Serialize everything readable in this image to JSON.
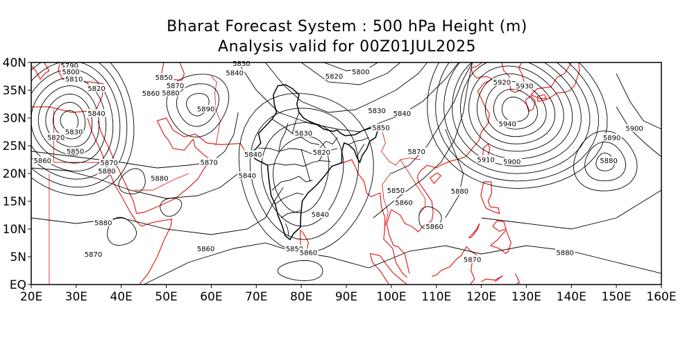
{
  "title": {
    "line1": "Bharat Forecast System : 500 hPa Height (m)",
    "line2": "Analysis valid for 00Z01JUL2025"
  },
  "axes": {
    "lon_ticks": [
      "20E",
      "30E",
      "40E",
      "50E",
      "60E",
      "70E",
      "80E",
      "90E",
      "100E",
      "110E",
      "120E",
      "130E",
      "140E",
      "150E",
      "160E"
    ],
    "lat_ticks": [
      "EQ",
      "5N",
      "10N",
      "15N",
      "20N",
      "25N",
      "30N",
      "35N",
      "40N"
    ],
    "lon_range": [
      20,
      160
    ],
    "lat_range": [
      0,
      40
    ]
  },
  "colors": {
    "coastline": "#e02020",
    "contour": "#000000",
    "india_boundary": "#000000"
  },
  "contour_labels": [
    {
      "text": "5790",
      "lon": 28.5,
      "lat": 39.3
    },
    {
      "text": "5800",
      "lon": 28.8,
      "lat": 38.2
    },
    {
      "text": "5810",
      "lon": 29.5,
      "lat": 36.9
    },
    {
      "text": "5820",
      "lon": 34.5,
      "lat": 35.2
    },
    {
      "text": "5840",
      "lon": 34.5,
      "lat": 30.7
    },
    {
      "text": "5830",
      "lon": 29.5,
      "lat": 27.4
    },
    {
      "text": "5820",
      "lon": 25.5,
      "lat": 26.4
    },
    {
      "text": "5850",
      "lon": 29.8,
      "lat": 23.9
    },
    {
      "text": "5860",
      "lon": 22.5,
      "lat": 22.2
    },
    {
      "text": "5870",
      "lon": 37.3,
      "lat": 21.8
    },
    {
      "text": "5880",
      "lon": 36.8,
      "lat": 20.3
    },
    {
      "text": "5880",
      "lon": 48.5,
      "lat": 19.0
    },
    {
      "text": "5880",
      "lon": 36.0,
      "lat": 11.0
    },
    {
      "text": "5870",
      "lon": 33.8,
      "lat": 5.3
    },
    {
      "text": "5850",
      "lon": 49.5,
      "lat": 37.2
    },
    {
      "text": "5870",
      "lon": 52.0,
      "lat": 35.7
    },
    {
      "text": "5880",
      "lon": 51.0,
      "lat": 34.4
    },
    {
      "text": "5860",
      "lon": 46.6,
      "lat": 34.3
    },
    {
      "text": "5890",
      "lon": 58.8,
      "lat": 31.5
    },
    {
      "text": "5830",
      "lon": 66.7,
      "lat": 39.7
    },
    {
      "text": "5840",
      "lon": 65.2,
      "lat": 38.0
    },
    {
      "text": "5870",
      "lon": 59.5,
      "lat": 21.9
    },
    {
      "text": "5840",
      "lon": 69.3,
      "lat": 23.3
    },
    {
      "text": "5840",
      "lon": 68.0,
      "lat": 19.5
    },
    {
      "text": "5830",
      "lon": 80.5,
      "lat": 27.1
    },
    {
      "text": "5820",
      "lon": 84.5,
      "lat": 23.7
    },
    {
      "text": "5840",
      "lon": 84.2,
      "lat": 12.5
    },
    {
      "text": "5850",
      "lon": 78.5,
      "lat": 6.3
    },
    {
      "text": "5860",
      "lon": 81.6,
      "lat": 5.6
    },
    {
      "text": "5860",
      "lon": 58.8,
      "lat": 6.3
    },
    {
      "text": "5820",
      "lon": 87.3,
      "lat": 37.4
    },
    {
      "text": "5800",
      "lon": 93.2,
      "lat": 38.2
    },
    {
      "text": "5830",
      "lon": 96.8,
      "lat": 31.2
    },
    {
      "text": "5840",
      "lon": 102.4,
      "lat": 30.7
    },
    {
      "text": "5850",
      "lon": 97.7,
      "lat": 28.1
    },
    {
      "text": "5870",
      "lon": 105.6,
      "lat": 23.8
    },
    {
      "text": "5850",
      "lon": 101.0,
      "lat": 16.8
    },
    {
      "text": "5860",
      "lon": 102.8,
      "lat": 14.6
    },
    {
      "text": "5860",
      "lon": 109.6,
      "lat": 10.3
    },
    {
      "text": "5870",
      "lon": 118.0,
      "lat": 4.4
    },
    {
      "text": "5880",
      "lon": 115.2,
      "lat": 16.7
    },
    {
      "text": "5920",
      "lon": 124.6,
      "lat": 36.3
    },
    {
      "text": "5930",
      "lon": 129.6,
      "lat": 35.6
    },
    {
      "text": "5940",
      "lon": 125.8,
      "lat": 28.8
    },
    {
      "text": "5910",
      "lon": 121.0,
      "lat": 22.4
    },
    {
      "text": "5900",
      "lon": 126.8,
      "lat": 22.0
    },
    {
      "text": "5890",
      "lon": 149.0,
      "lat": 26.3
    },
    {
      "text": "5900",
      "lon": 154.0,
      "lat": 28.0
    },
    {
      "text": "5880",
      "lon": 148.3,
      "lat": 22.2
    },
    {
      "text": "5880",
      "lon": 138.6,
      "lat": 5.6
    }
  ]
}
